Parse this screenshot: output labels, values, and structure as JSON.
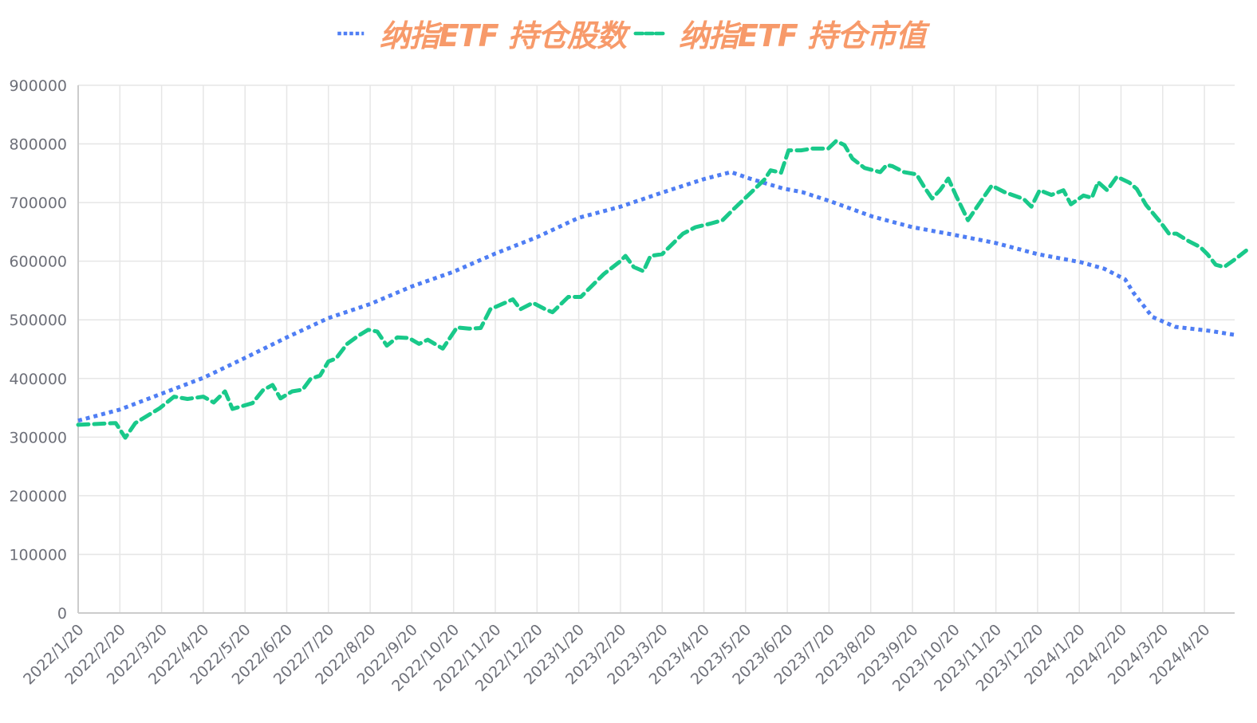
{
  "legend": {
    "series_shares_label": "纳指ETF 持仓股数",
    "series_value_label": "纳指ETF 持仓市值"
  },
  "colors": {
    "shares": "#4F7EF4",
    "value": "#19C98A",
    "legend_text": "#F79A6A",
    "grid": "#E6E6E6",
    "axis": "#CCCCCC",
    "tick_text": "#6E7079"
  },
  "chart_data": {
    "type": "line",
    "title": "",
    "xlabel": "",
    "ylabel": "",
    "ylim": [
      0,
      900000
    ],
    "yticks": [
      0,
      100000,
      200000,
      300000,
      400000,
      500000,
      600000,
      700000,
      800000,
      900000
    ],
    "categories": [
      "2022/1/20",
      "2022/2/20",
      "2022/3/20",
      "2022/4/20",
      "2022/5/20",
      "2022/6/20",
      "2022/7/20",
      "2022/8/20",
      "2022/9/20",
      "2022/10/20",
      "2022/11/20",
      "2022/12/20",
      "2023/1/20",
      "2023/2/20",
      "2023/3/20",
      "2023/4/20",
      "2023/5/20",
      "2023/6/20",
      "2023/7/20",
      "2023/8/20",
      "2023/9/20",
      "2023/10/20",
      "2023/11/20",
      "2023/12/20",
      "2024/1/20",
      "2024/2/20",
      "2024/3/20",
      "2024/4/20"
    ],
    "grid": true,
    "legend_position": "top",
    "series": [
      {
        "name": "纳指ETF 持仓股数",
        "style": "dotted",
        "color": "#4F7EF4",
        "x_index": [
          0,
          1,
          2,
          3,
          4,
          5,
          6,
          7,
          8,
          9,
          10,
          11,
          12,
          13,
          14,
          15,
          15.65,
          16.1,
          16.9,
          17.35,
          18,
          19.05,
          20,
          21,
          22,
          23,
          24.05,
          24.6,
          25.1,
          25.3,
          25.75,
          26.3,
          27.15,
          27.75
        ],
        "values": [
          328000,
          347000,
          374000,
          401000,
          435000,
          470000,
          503000,
          527000,
          557000,
          582000,
          613000,
          641000,
          674000,
          693000,
          717000,
          740000,
          752000,
          741000,
          724000,
          718000,
          703000,
          676000,
          658000,
          645000,
          631000,
          612000,
          598000,
          587000,
          569000,
          546000,
          505000,
          488000,
          481000,
          474000
        ]
      },
      {
        "name": "纳指ETF 持仓市值",
        "style": "dashed",
        "color": "#19C98A",
        "x_index": [
          0,
          0.9,
          1.13,
          1.37,
          1.95,
          2.3,
          2.62,
          3.0,
          3.25,
          3.52,
          3.7,
          4.18,
          4.43,
          4.66,
          4.85,
          5.13,
          5.38,
          5.57,
          5.8,
          6.0,
          6.18,
          6.45,
          6.7,
          6.95,
          7.17,
          7.4,
          7.65,
          7.93,
          8.17,
          8.38,
          8.74,
          9.08,
          9.37,
          9.65,
          9.88,
          10.42,
          10.6,
          10.9,
          11.2,
          11.37,
          11.75,
          12.05,
          12.6,
          12.98,
          13.12,
          13.32,
          13.55,
          13.72,
          14.0,
          14.5,
          14.8,
          15.15,
          15.45,
          15.73,
          16.1,
          16.45,
          16.6,
          16.85,
          17.03,
          17.33,
          17.6,
          17.98,
          18.17,
          18.37,
          18.56,
          18.85,
          19.23,
          19.38,
          19.52,
          19.8,
          20.1,
          20.28,
          20.47,
          20.66,
          20.86,
          21.05,
          21.33,
          21.62,
          21.9,
          22.2,
          22.67,
          22.85,
          23.05,
          23.33,
          23.62,
          23.8,
          24.1,
          24.3,
          24.45,
          24.67,
          24.9,
          25.2,
          25.38,
          25.6,
          25.95,
          26.15,
          26.33,
          26.6,
          26.9,
          27.07,
          27.27,
          27.47,
          27.75,
          28.0
        ],
        "values": [
          321000,
          324000,
          299000,
          324000,
          349000,
          369000,
          365000,
          369000,
          359000,
          378000,
          348000,
          358000,
          380000,
          389000,
          366000,
          378000,
          381000,
          399000,
          405000,
          429000,
          434000,
          459000,
          472000,
          483000,
          480000,
          456000,
          470000,
          469000,
          459000,
          466000,
          451000,
          487000,
          485000,
          486000,
          518000,
          535000,
          518000,
          529000,
          518000,
          513000,
          539000,
          539000,
          578000,
          599000,
          609000,
          590000,
          583000,
          609000,
          612000,
          647000,
          658000,
          664000,
          670000,
          690000,
          715000,
          739000,
          755000,
          751000,
          789000,
          789000,
          792000,
          792000,
          805000,
          798000,
          775000,
          759000,
          752000,
          764000,
          762000,
          752000,
          748000,
          727000,
          707000,
          721000,
          741000,
          711000,
          670000,
          700000,
          729000,
          718000,
          706000,
          693000,
          721000,
          713000,
          721000,
          697000,
          712000,
          708000,
          735000,
          721000,
          744000,
          734000,
          723000,
          696000,
          666000,
          647000,
          647000,
          635000,
          624000,
          612000,
          594000,
          590000,
          604000,
          618000
        ]
      }
    ]
  }
}
